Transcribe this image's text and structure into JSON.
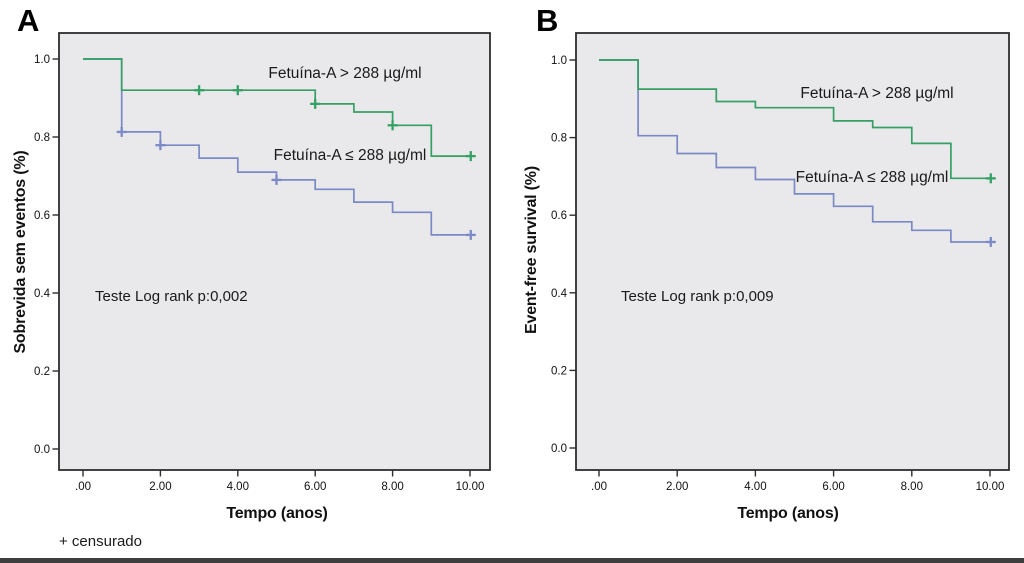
{
  "figure": {
    "censored_note": "+ censurado",
    "colors": {
      "plot_background": "#e9e8ea",
      "frame": "#2e2e2e",
      "tick_text": "#111111",
      "green_series": "#35a065",
      "blue_series": "#7b8ac6"
    }
  },
  "chart_data": [
    {
      "type": "line",
      "subtype": "kaplan-meier-step",
      "panel_label": "A",
      "title": "",
      "xlabel": "Tempo (anos)",
      "ylabel": "Sobrevida sem eventos (%)",
      "annotation": "Teste Log rank p:0,002",
      "x_ticks": [
        ".00",
        "2.00",
        "4.00",
        "6.00",
        "8.00",
        "10.00"
      ],
      "x_tick_values": [
        0,
        2,
        4,
        6,
        8,
        10
      ],
      "y_ticks": [
        "0.0",
        "0.2",
        "0.4",
        "0.6",
        "0.8",
        "1.0"
      ],
      "y_tick_values": [
        0,
        0.2,
        0.4,
        0.6,
        0.8,
        1.0
      ],
      "xlim": [
        0,
        10.1
      ],
      "ylim": [
        0,
        1.0
      ],
      "grid": false,
      "legend_position": "in-plot-text",
      "series": [
        {
          "name": "Fetuína-A > 288 µg/ml",
          "color": "#35a065",
          "steps": [
            [
              0,
              1.0
            ],
            [
              1,
              1.0
            ],
            [
              1,
              0.92
            ],
            [
              6,
              0.92
            ],
            [
              6,
              0.885
            ],
            [
              7,
              0.885
            ],
            [
              7,
              0.864
            ],
            [
              8,
              0.864
            ],
            [
              8,
              0.83
            ],
            [
              9,
              0.83
            ],
            [
              9,
              0.751
            ],
            [
              10.1,
              0.751
            ]
          ],
          "censored": [
            [
              3,
              0.92
            ],
            [
              4,
              0.92
            ],
            [
              6,
              0.885
            ],
            [
              8,
              0.83
            ],
            [
              10.02,
              0.751
            ]
          ]
        },
        {
          "name": "Fetuína-A ≤ 288 µg/ml",
          "color": "#7b8ac6",
          "steps": [
            [
              0,
              1.0
            ],
            [
              1,
              1.0
            ],
            [
              1,
              0.813
            ],
            [
              2,
              0.813
            ],
            [
              2,
              0.779
            ],
            [
              3,
              0.779
            ],
            [
              3,
              0.746
            ],
            [
              4,
              0.746
            ],
            [
              4,
              0.71
            ],
            [
              5,
              0.71
            ],
            [
              5,
              0.69
            ],
            [
              6,
              0.69
            ],
            [
              6,
              0.666
            ],
            [
              7,
              0.666
            ],
            [
              7,
              0.633
            ],
            [
              8,
              0.633
            ],
            [
              8,
              0.607
            ],
            [
              9,
              0.607
            ],
            [
              9,
              0.549
            ],
            [
              10.1,
              0.549
            ]
          ],
          "censored": [
            [
              1,
              0.813
            ],
            [
              2,
              0.779
            ],
            [
              5,
              0.69
            ],
            [
              10.02,
              0.549
            ]
          ]
        }
      ]
    },
    {
      "type": "line",
      "subtype": "kaplan-meier-step",
      "panel_label": "B",
      "title": "",
      "xlabel": "Tempo (anos)",
      "ylabel": "Event-free survival (%)",
      "annotation": "Teste Log rank p:0,009",
      "x_ticks": [
        ".00",
        "2.00",
        "4.00",
        "6.00",
        "8.00",
        "10.00"
      ],
      "x_tick_values": [
        0,
        2,
        4,
        6,
        8,
        10
      ],
      "y_ticks": [
        "0.0",
        "0.2",
        "0.4",
        "0.6",
        "0.8",
        "1.0"
      ],
      "y_tick_values": [
        0,
        0.2,
        0.4,
        0.6,
        0.8,
        1.0
      ],
      "xlim": [
        0,
        10.1
      ],
      "ylim": [
        0,
        1.0
      ],
      "grid": false,
      "legend_position": "in-plot-text",
      "series": [
        {
          "name": "Fetuína-A > 288 µg/ml",
          "color": "#35a065",
          "steps": [
            [
              0,
              1.0
            ],
            [
              1,
              1.0
            ],
            [
              1,
              0.925
            ],
            [
              3,
              0.925
            ],
            [
              3,
              0.893
            ],
            [
              4,
              0.893
            ],
            [
              4,
              0.877
            ],
            [
              6,
              0.877
            ],
            [
              6,
              0.843
            ],
            [
              7,
              0.843
            ],
            [
              7,
              0.826
            ],
            [
              8,
              0.826
            ],
            [
              8,
              0.785
            ],
            [
              9,
              0.785
            ],
            [
              9,
              0.695
            ],
            [
              10.1,
              0.695
            ]
          ],
          "censored": [
            [
              10.02,
              0.695
            ]
          ]
        },
        {
          "name": "Fetuína-A ≤ 288 µg/ml",
          "color": "#7b8ac6",
          "steps": [
            [
              0,
              1.0
            ],
            [
              1,
              1.0
            ],
            [
              1,
              0.805
            ],
            [
              2,
              0.805
            ],
            [
              2,
              0.759
            ],
            [
              3,
              0.759
            ],
            [
              3,
              0.723
            ],
            [
              4,
              0.723
            ],
            [
              4,
              0.692
            ],
            [
              5,
              0.692
            ],
            [
              5,
              0.655
            ],
            [
              6,
              0.655
            ],
            [
              6,
              0.623
            ],
            [
              7,
              0.623
            ],
            [
              7,
              0.583
            ],
            [
              8,
              0.583
            ],
            [
              8,
              0.561
            ],
            [
              9,
              0.561
            ],
            [
              9,
              0.531
            ],
            [
              10.1,
              0.531
            ]
          ],
          "censored": [
            [
              10.02,
              0.531
            ]
          ]
        }
      ]
    }
  ]
}
